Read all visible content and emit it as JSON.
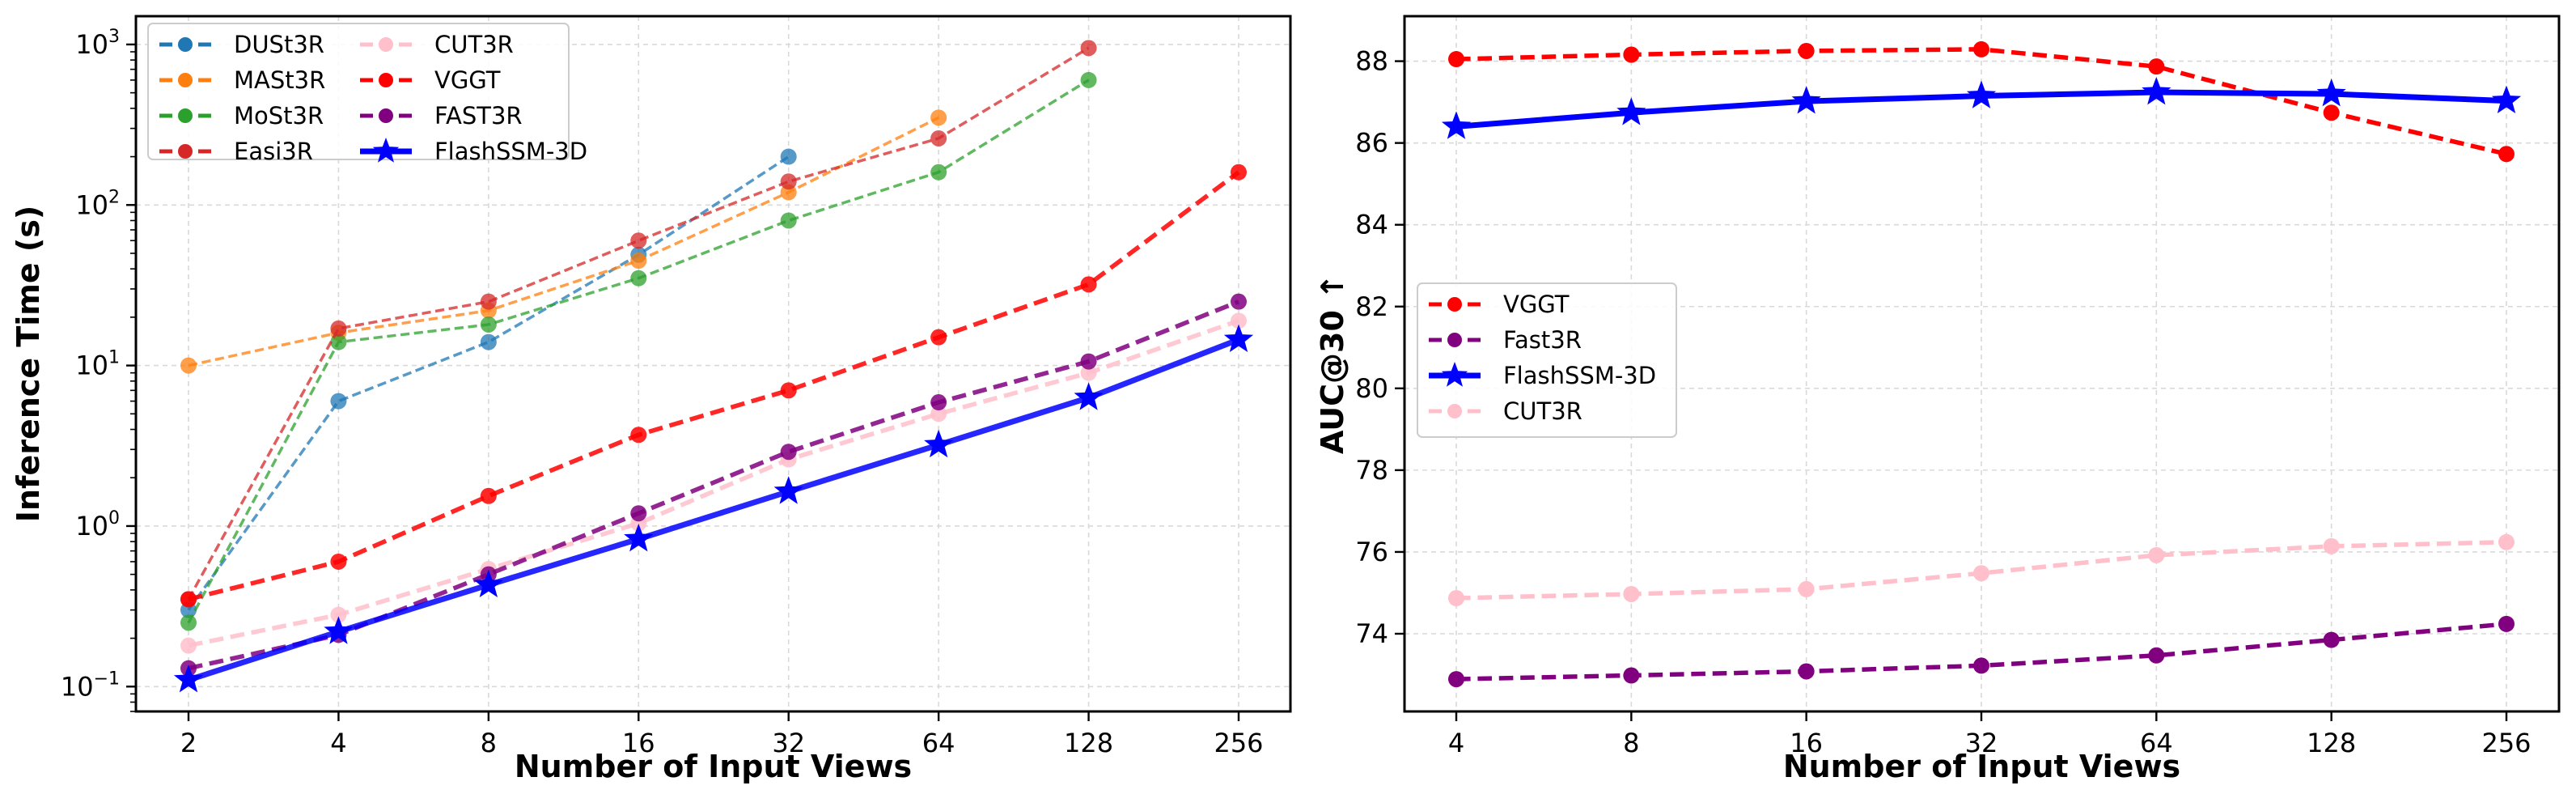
{
  "chart_data": [
    {
      "type": "line",
      "title": "",
      "xlabel": "Number of Input Views",
      "ylabel": "Inference Time (s)",
      "yscale": "log",
      "ylim": [
        0.07,
        1500
      ],
      "x": [
        2,
        4,
        8,
        16,
        32,
        64,
        128,
        256
      ],
      "x_tick_labels": [
        "2",
        "4",
        "8",
        "16",
        "32",
        "64",
        "128",
        "256"
      ],
      "y_ticks": [
        0.1,
        1,
        10,
        100,
        1000
      ],
      "y_tick_labels": [
        {
          "base": "10",
          "exp": "−1"
        },
        {
          "base": "10",
          "exp": "0"
        },
        {
          "base": "10",
          "exp": "1"
        },
        {
          "base": "10",
          "exp": "2"
        },
        {
          "base": "10",
          "exp": "3"
        }
      ],
      "grid": true,
      "legend_position": "top-left",
      "legend_columns": 2,
      "series": [
        {
          "name": "DUSt3R",
          "color": "#1f77b4",
          "style": "dashed",
          "marker": "circle",
          "values": [
            0.3,
            6.0,
            14,
            49,
            200,
            null,
            null,
            null
          ]
        },
        {
          "name": "MASt3R",
          "color": "#ff7f0e",
          "style": "dashed",
          "marker": "circle",
          "values": [
            10,
            16,
            22,
            45,
            120,
            350,
            null,
            null
          ]
        },
        {
          "name": "MoSt3R",
          "color": "#2ca02c",
          "style": "dashed",
          "marker": "circle",
          "values": [
            0.25,
            14,
            18,
            35,
            80,
            160,
            600,
            null
          ]
        },
        {
          "name": "Easi3R",
          "color": "#d62728",
          "style": "dashed",
          "marker": "circle",
          "values": [
            0.35,
            17,
            25,
            60,
            140,
            260,
            950,
            null
          ]
        },
        {
          "name": "CUT3R",
          "color": "#ffc0cb",
          "style": "dashed",
          "marker": "circle",
          "values": [
            0.18,
            0.28,
            0.54,
            1.04,
            2.6,
            5.0,
            9.0,
            19
          ]
        },
        {
          "name": "VGGT",
          "color": "#ff0000",
          "style": "dashed",
          "marker": "circle",
          "values": [
            0.35,
            0.6,
            1.54,
            3.7,
            7.0,
            15,
            32,
            160
          ]
        },
        {
          "name": "FAST3R",
          "color": "#800080",
          "style": "dashed",
          "marker": "circle",
          "values": [
            0.13,
            0.21,
            0.5,
            1.2,
            2.9,
            5.9,
            10.6,
            25
          ]
        },
        {
          "name": "FlashSSM-3D",
          "color": "#0000ff",
          "style": "solid",
          "marker": "star",
          "values": [
            0.11,
            0.22,
            0.43,
            0.83,
            1.64,
            3.2,
            6.3,
            14.5
          ]
        }
      ]
    },
    {
      "type": "line",
      "title": "",
      "xlabel": "Number of Input Views",
      "ylabel": "AUC@30 ↑",
      "yscale": "linear",
      "ylim": [
        72.1,
        89.1
      ],
      "x": [
        4,
        8,
        16,
        32,
        64,
        128,
        256
      ],
      "x_tick_labels": [
        "4",
        "8",
        "16",
        "32",
        "64",
        "128",
        "256"
      ],
      "y_ticks": [
        74,
        76,
        78,
        80,
        82,
        84,
        86,
        88
      ],
      "y_tick_labels": [
        "74",
        "76",
        "78",
        "80",
        "82",
        "84",
        "86",
        "88"
      ],
      "grid": true,
      "legend_position": "center-left",
      "legend_columns": 1,
      "series": [
        {
          "name": "VGGT",
          "color": "#ff0000",
          "style": "dashed",
          "marker": "circle",
          "values": [
            88.05,
            88.16,
            88.25,
            88.29,
            87.87,
            86.74,
            85.73
          ]
        },
        {
          "name": "Fast3R",
          "color": "#800080",
          "style": "dashed",
          "marker": "circle",
          "values": [
            72.89,
            72.98,
            73.08,
            73.22,
            73.47,
            73.85,
            74.24
          ]
        },
        {
          "name": "FlashSSM-3D",
          "color": "#0000ff",
          "style": "solid",
          "marker": "star",
          "values": [
            86.4,
            86.74,
            87.02,
            87.15,
            87.24,
            87.2,
            87.03
          ]
        },
        {
          "name": "CUT3R",
          "color": "#ffc0cb",
          "style": "dashed",
          "marker": "circle",
          "values": [
            74.87,
            74.97,
            75.09,
            75.48,
            75.92,
            76.14,
            76.24
          ]
        }
      ]
    }
  ]
}
